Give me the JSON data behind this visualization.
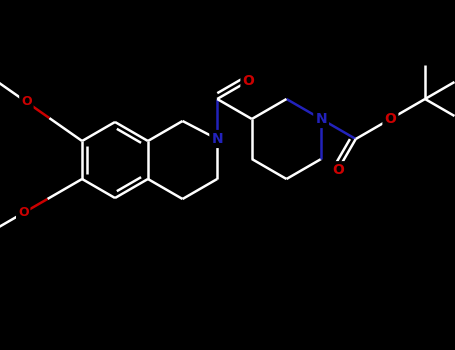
{
  "bg_color": "#000000",
  "bond_color": "#ffffff",
  "N_color": "#2222bb",
  "O_color": "#cc0000",
  "bond_width": 1.8,
  "figsize": [
    4.55,
    3.5
  ],
  "dpi": 100,
  "xlim": [
    0,
    455
  ],
  "ylim": [
    0,
    350
  ]
}
